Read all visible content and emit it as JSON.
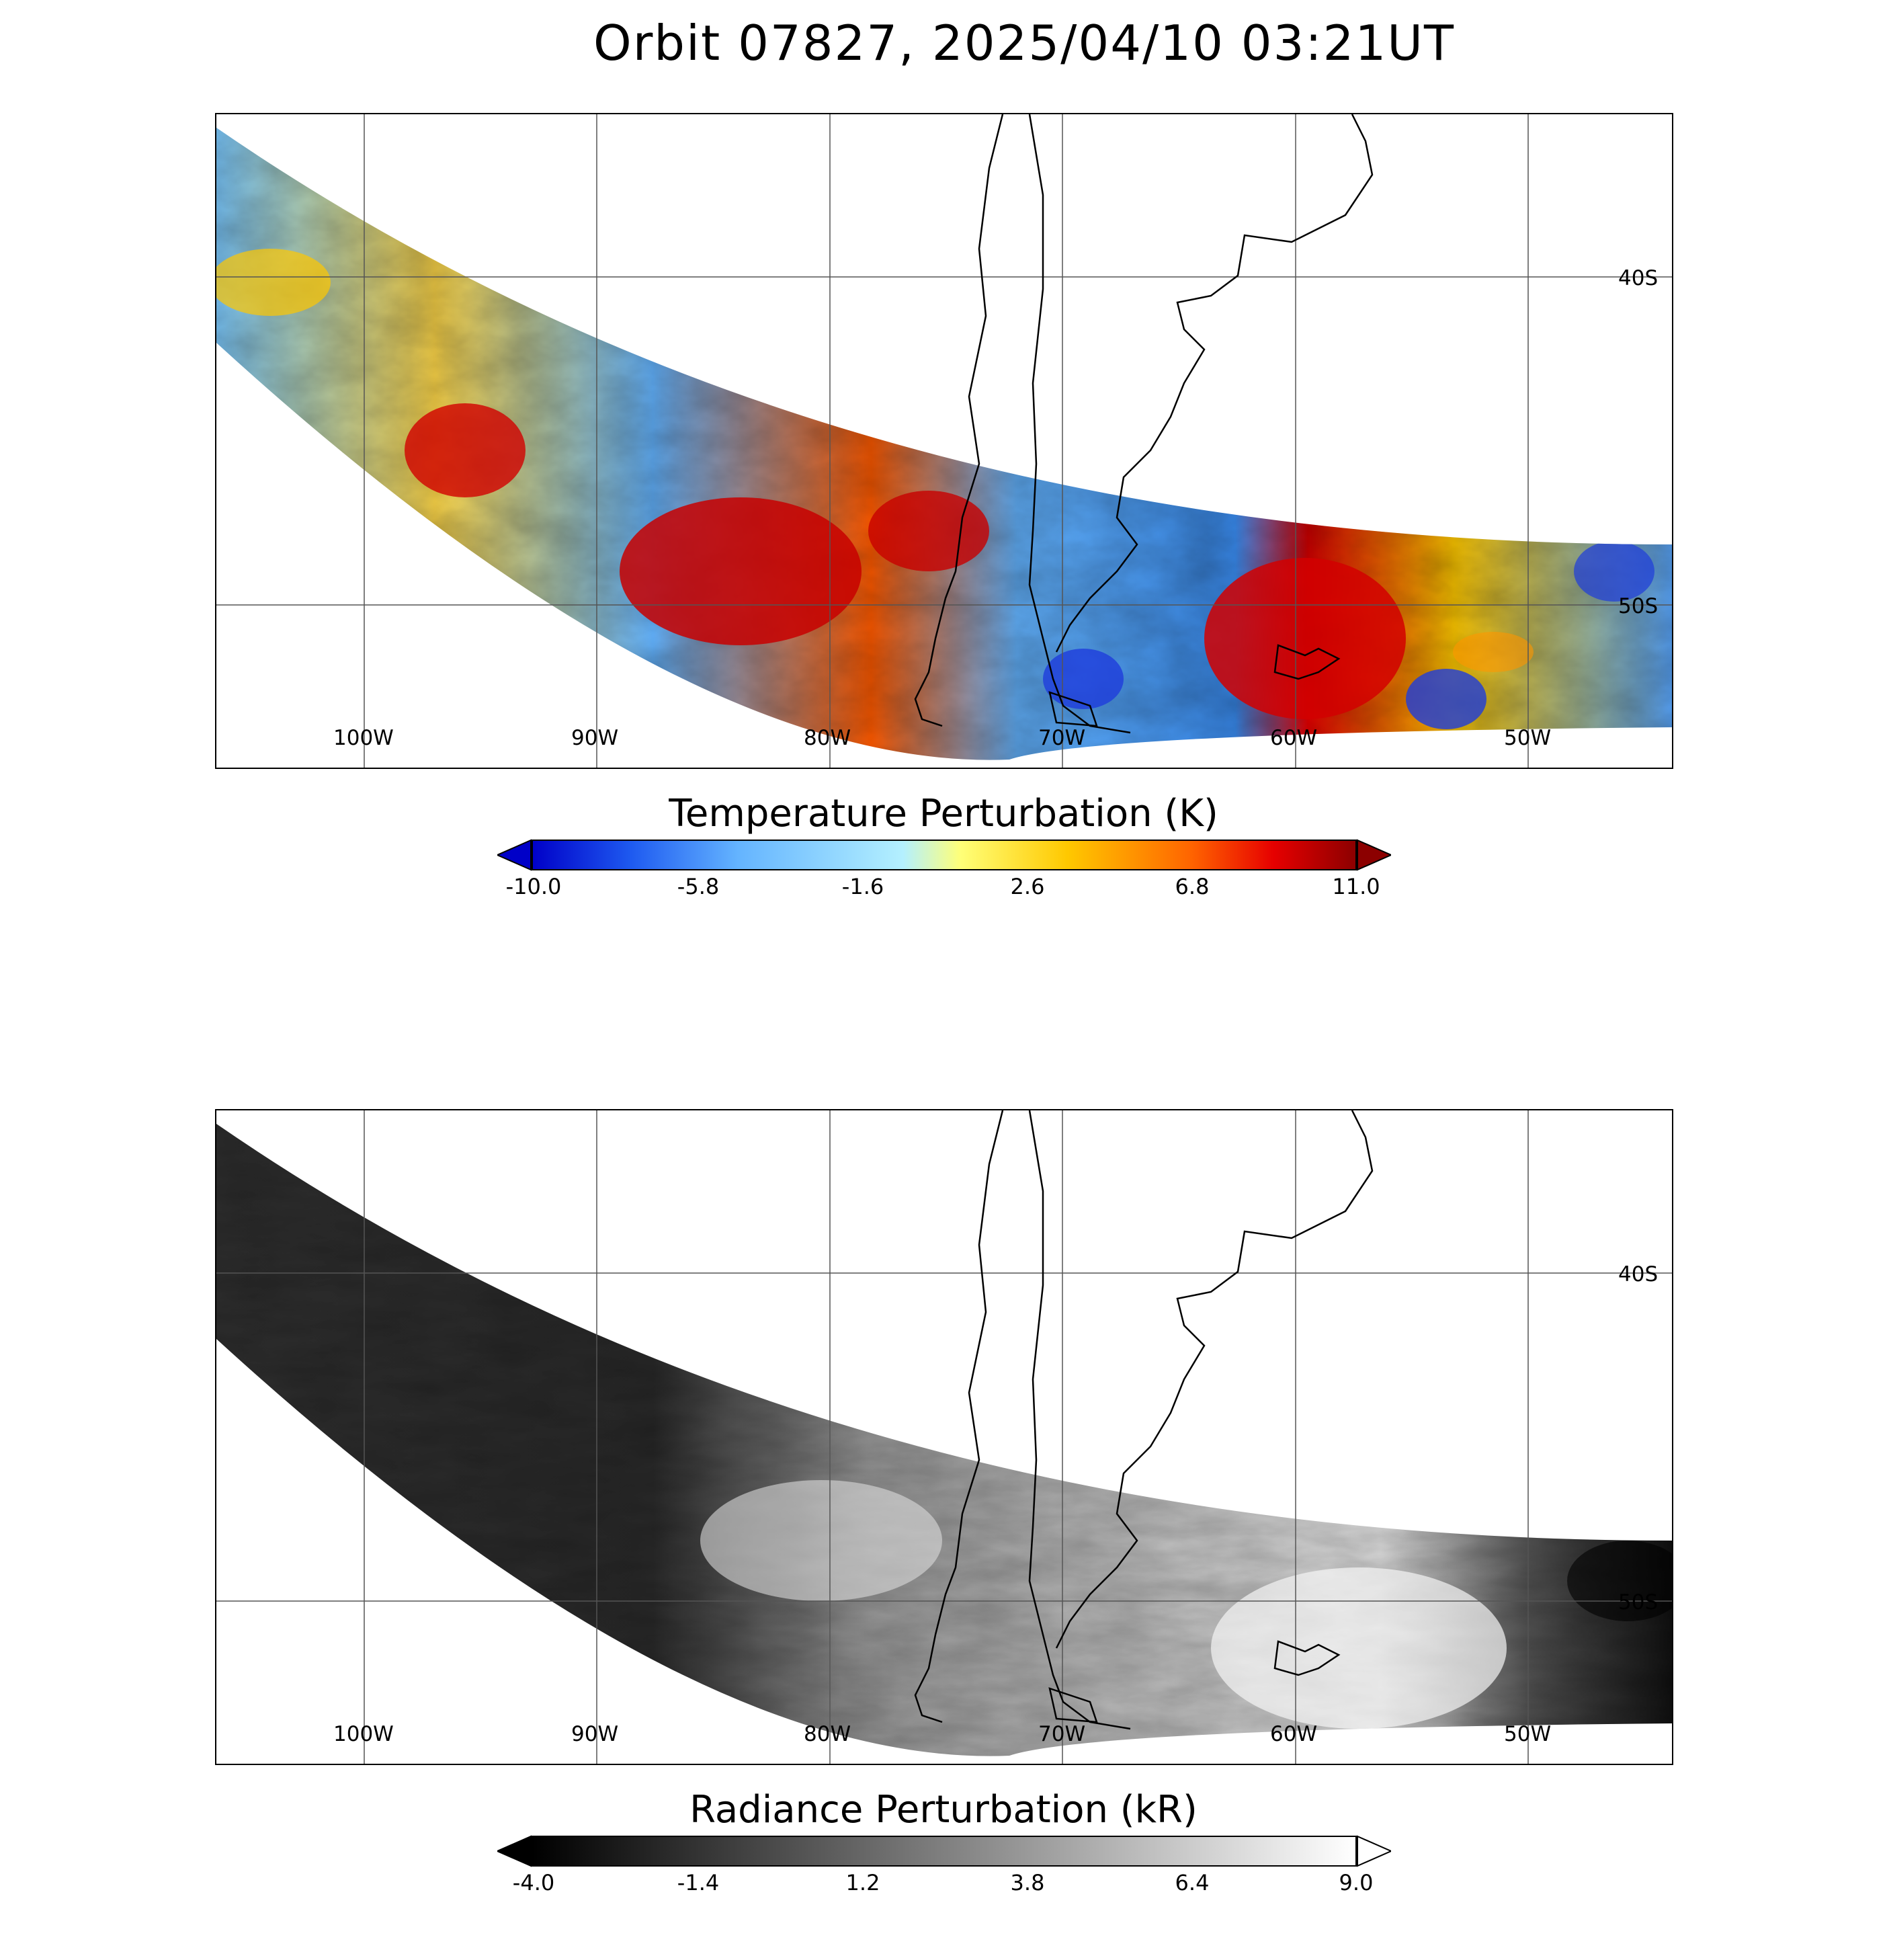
{
  "title": "Orbit 07827, 2025/04/10 03:21UT",
  "map": {
    "lon_labels": [
      "100W",
      "90W",
      "80W",
      "70W",
      "60W",
      "50W"
    ],
    "lat_labels": [
      "40S",
      "50S"
    ]
  },
  "panels": {
    "top": {
      "colorbar_title": "Temperature Perturbation (K)",
      "colorbar_ticks": [
        "-10.0",
        "-5.8",
        "-1.6",
        "2.6",
        "6.8",
        "11.0"
      ],
      "range": [
        -10.0,
        11.0
      ],
      "colormap": [
        "#0000c8",
        "#1e5af0",
        "#64b4ff",
        "#b4f0ff",
        "#ffff78",
        "#ffc800",
        "#ff6400",
        "#e60000",
        "#8c0000"
      ],
      "extend_low_color": "#0000c8",
      "extend_high_color": "#8c0000"
    },
    "bottom": {
      "colorbar_title": "Radiance Perturbation (kR)",
      "colorbar_ticks": [
        "-4.0",
        "-1.4",
        "1.2",
        "3.8",
        "6.4",
        "9.0"
      ],
      "range": [
        -4.0,
        9.0
      ],
      "colormap": [
        "#000000",
        "#ffffff"
      ],
      "extend_low_color": "#000000",
      "extend_high_color": "#ffffff"
    }
  }
}
